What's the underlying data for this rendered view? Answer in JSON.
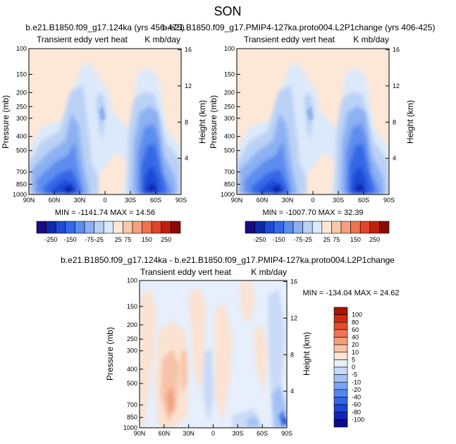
{
  "title": "SON",
  "colors": {
    "panel_scale": [
      "#1a0a85",
      "#0f2aa8",
      "#1f4ad6",
      "#3567e8",
      "#5d8eef",
      "#8cb0f2",
      "#b9d1f5",
      "#dce9fb",
      "#fde8d8",
      "#f9c8ac",
      "#f4a07d",
      "#ee7350",
      "#e0452a",
      "#c01f10",
      "#8a0a05"
    ],
    "diff_scale": [
      "#0a0a8a",
      "#1026b0",
      "#1d44d4",
      "#3365e6",
      "#5586ee",
      "#7ba4f1",
      "#a3c1f4",
      "#c8daf7",
      "#e6effb",
      "#fbe2d2",
      "#f7c3a7",
      "#f29f7c",
      "#ec7654",
      "#e34b2c",
      "#cf2a10",
      "#a81405"
    ]
  },
  "chart_data": [
    {
      "type": "heatmap",
      "title_left": "b.e21.B1850.f09_g17.124ka (yrs 456-475)",
      "subtitle_left": "Transient eddy vert heat",
      "subtitle_right": "K mb/day",
      "ylabel": "Pressure (mb)",
      "ylabel_right": "Height (km)",
      "x_ticks": [
        "90N",
        "60N",
        "30N",
        "0",
        "30S",
        "60S",
        "90S"
      ],
      "y_ticks": [
        "100",
        "150",
        "200",
        "250",
        "300",
        "400",
        "500",
        "700",
        "850",
        "1000"
      ],
      "y_ticks_right": [
        "16",
        "12",
        "8",
        "4"
      ],
      "stats": "MIN = -1141.74  MAX = 14.56",
      "colorbar_levels": [
        "-250",
        "-150",
        "-75",
        "-25",
        "25",
        "75",
        "150",
        "250"
      ]
    },
    {
      "type": "heatmap",
      "title_left": "b.e21.B1850.f09_g17.PMIP4-127ka.proto004.L2P1change (yrs 406-425)",
      "subtitle_left": "Transient eddy vert heat",
      "subtitle_right": "K mb/day",
      "ylabel": "Pressure (mb)",
      "ylabel_right": "Height (km)",
      "x_ticks": [
        "90N",
        "60N",
        "30N",
        "0",
        "30S",
        "60S",
        "90S"
      ],
      "y_ticks": [
        "100",
        "150",
        "200",
        "250",
        "300",
        "400",
        "500",
        "700",
        "850",
        "1000"
      ],
      "y_ticks_right": [
        "16",
        "12",
        "8",
        "4"
      ],
      "stats": "MIN = -1007.70  MAX = 32.39",
      "colorbar_levels": [
        "-250",
        "-150",
        "-75",
        "-25",
        "25",
        "75",
        "150",
        "250"
      ]
    },
    {
      "type": "heatmap",
      "title_left": "b.e21.B1850.f09_g17.124ka - b.e21.B1850.f09_g17.PMIP4-127ka.proto004.L2P1change",
      "subtitle_left": "Transient eddy vert heat",
      "subtitle_right": "K mb/day",
      "ylabel": "Pressure (mb)",
      "ylabel_right": "Height (km)",
      "x_ticks": [
        "90N",
        "60N",
        "30N",
        "0",
        "30S",
        "60S",
        "90S"
      ],
      "y_ticks": [
        "100",
        "150",
        "200",
        "250",
        "300",
        "400",
        "500",
        "700",
        "850",
        "1000"
      ],
      "y_ticks_right": [
        "16",
        "12",
        "8",
        "4"
      ],
      "stats": "MIN = -134.04  MAX = 24.62",
      "colorbar_levels": [
        "100",
        "80",
        "60",
        "40",
        "20",
        "10",
        "5",
        "0",
        "-5",
        "-10",
        "-20",
        "-40",
        "-60",
        "-80",
        "-100"
      ]
    }
  ]
}
